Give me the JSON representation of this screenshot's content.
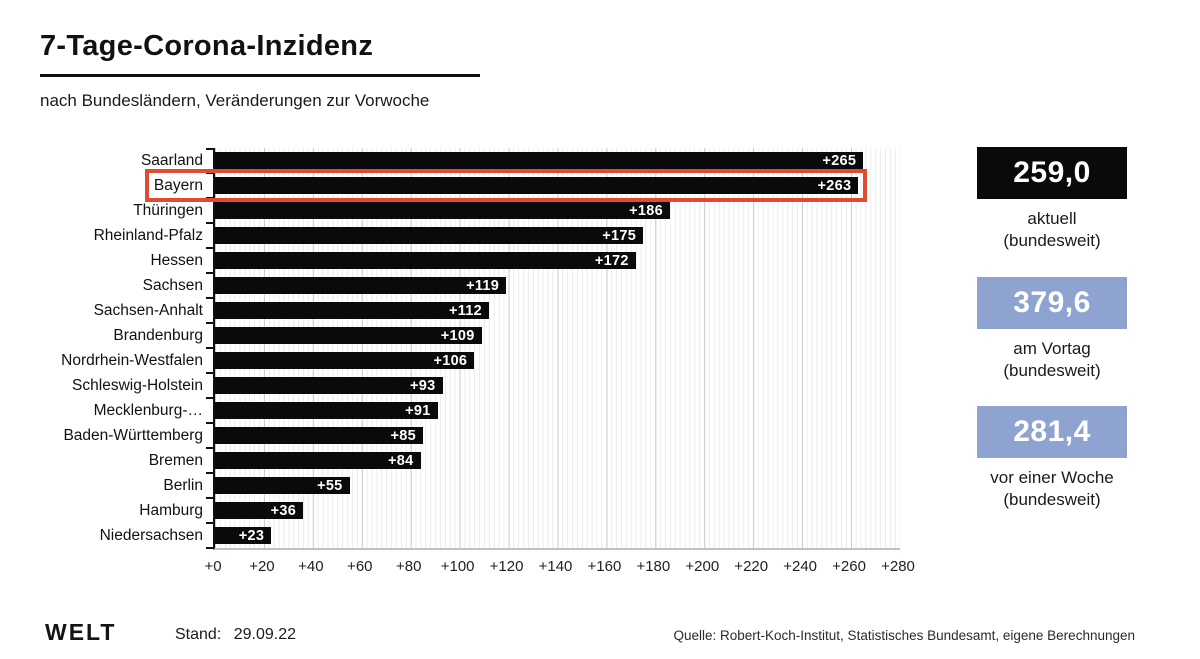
{
  "header": {
    "title": "7-Tage-Corona-Inzidenz",
    "subtitle": "nach Bundesländern, Veränderungen zur Vorwoche"
  },
  "chart_data": {
    "type": "bar",
    "orientation": "horizontal",
    "title": "7-Tage-Corona-Inzidenz",
    "subtitle": "nach Bundesländern, Veränderungen zur Vorwoche",
    "categories": [
      "Saarland",
      "Bayern",
      "Thüringen",
      "Rheinland-Pfalz",
      "Hessen",
      "Sachsen",
      "Sachsen-Anhalt",
      "Brandenburg",
      "Nordrhein-Westfalen",
      "Schleswig-Holstein",
      "Mecklenburg-…",
      "Baden-Württemberg",
      "Bremen",
      "Berlin",
      "Hamburg",
      "Niedersachsen"
    ],
    "values": [
      265,
      263,
      186,
      175,
      172,
      119,
      112,
      109,
      106,
      93,
      91,
      85,
      84,
      55,
      36,
      23
    ],
    "value_prefix": "+",
    "xlim": [
      0,
      280
    ],
    "x_tick_step": 20,
    "x_ticks": [
      "+0",
      "+20",
      "+40",
      "+60",
      "+80",
      "+100",
      "+120",
      "+140",
      "+160",
      "+180",
      "+200",
      "+220",
      "+240",
      "+260",
      "+280"
    ],
    "grid": true,
    "bar_color": "#0a0a0a",
    "value_label_color": "#ffffff",
    "highlighted_category": "Bayern",
    "highlight_color": "#e14b31"
  },
  "stats": [
    {
      "value": "259,0",
      "line1": "aktuell",
      "line2": "(bundesweit)",
      "bg": "#0a0a0a"
    },
    {
      "value": "379,6",
      "line1": "am Vortag",
      "line2": "(bundesweit)",
      "bg": "#8fa3d1"
    },
    {
      "value": "281,4",
      "line1": "vor einer Woche",
      "line2": "(bundesweit)",
      "bg": "#8fa3d1"
    }
  ],
  "footer": {
    "logo": "WELT",
    "stand_label": "Stand:",
    "stand_value": "29.09.22",
    "source": "Quelle: Robert-Koch-Institut, Statistisches Bundesamt, eigene Berechnungen"
  }
}
